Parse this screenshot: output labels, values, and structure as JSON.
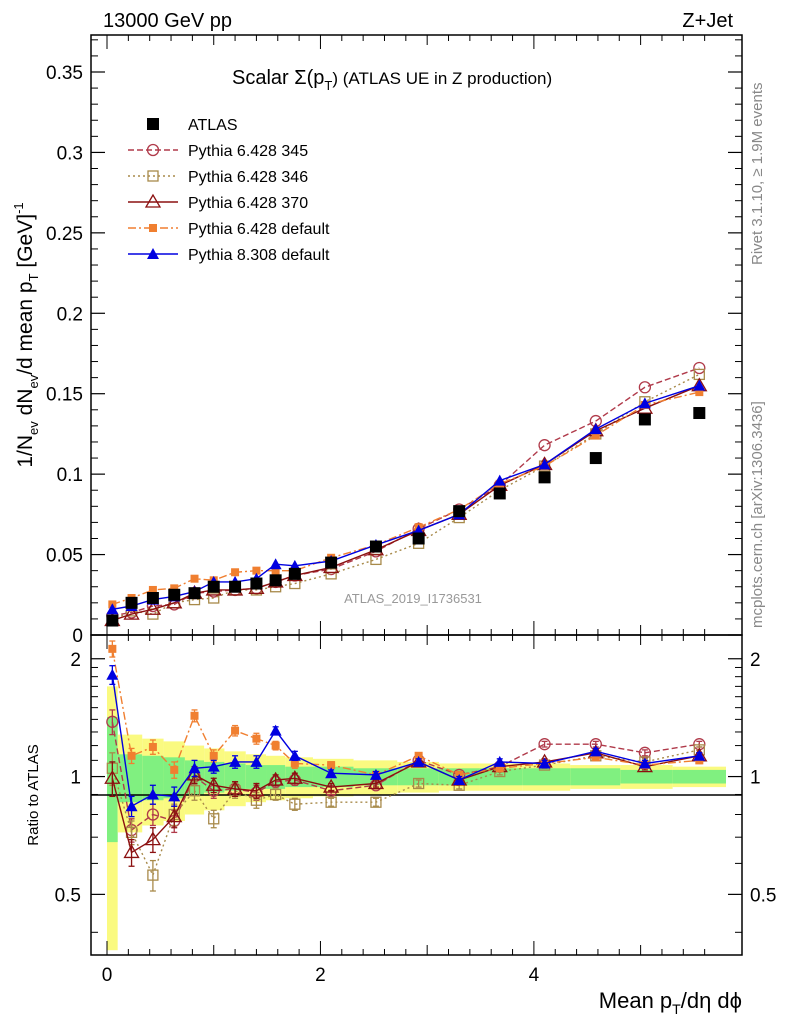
{
  "header": {
    "left": "13000 GeV pp",
    "right": "Z+Jet"
  },
  "side_labels": {
    "rivet": "Rivet 3.1.10, ≥ 1.9M events",
    "mcplots": "mcplots.cern.ch [arXiv:1306.3436]"
  },
  "watermark": "ATLAS_2019_I1736531",
  "colors": {
    "atlas": "#000000",
    "p345": "#b03a4a",
    "p346": "#a88a4a",
    "p370": "#8b1010",
    "p6def": "#f07f30",
    "p8def": "#0000e0",
    "band_inner": "#80f080",
    "band_outer": "#fafa80"
  },
  "chart_data": [
    {
      "panel": "main",
      "type": "scatter",
      "title_prefix": "Scalar Σ(p",
      "title_sub": "T",
      "title_suffix": ") (ATLAS UE in Z production)",
      "ylabel": "1/N_ev dN_ev/d mean p_T [GeV]^-1",
      "ylim": [
        0,
        0.373
      ],
      "xlim": [
        -0.15,
        5.95
      ],
      "yticks": [
        0,
        0.05,
        0.1,
        0.15,
        0.2,
        0.25,
        0.3,
        0.35
      ],
      "ytick_labels": [
        "0",
        "0.05",
        "0.1",
        "0.15",
        "0.2",
        "0.25",
        "0.3",
        "0.35"
      ],
      "x": [
        0.05,
        0.23,
        0.43,
        0.63,
        0.82,
        1.0,
        1.2,
        1.4,
        1.58,
        1.76,
        2.1,
        2.52,
        2.92,
        3.3,
        3.68,
        4.1,
        4.58,
        5.04,
        5.55
      ],
      "series": [
        {
          "name": "ATLAS",
          "key": "atlas",
          "marker": "square-filled",
          "line": "none",
          "values": [
            0.009,
            0.02,
            0.023,
            0.025,
            0.026,
            0.03,
            0.03,
            0.032,
            0.034,
            0.038,
            0.045,
            0.055,
            0.06,
            0.077,
            0.088,
            0.098,
            0.11,
            0.134,
            0.138
          ]
        },
        {
          "name": "Pythia 6.428 345",
          "key": "p345",
          "marker": "circle-open",
          "line": "dashed",
          "values": [
            0.012,
            0.014,
            0.018,
            0.019,
            0.026,
            0.027,
            0.028,
            0.029,
            0.033,
            0.037,
            0.041,
            0.052,
            0.066,
            0.078,
            0.093,
            0.118,
            0.133,
            0.154,
            0.166
          ]
        },
        {
          "name": "Pythia 6.428 346",
          "key": "p346",
          "marker": "square-open",
          "line": "dotted",
          "values": [
            0.009,
            0.015,
            0.013,
            0.02,
            0.022,
            0.023,
            0.028,
            0.028,
            0.03,
            0.032,
            0.038,
            0.047,
            0.057,
            0.073,
            0.09,
            0.105,
            0.125,
            0.145,
            0.162
          ]
        },
        {
          "name": "Pythia 6.428 370",
          "key": "p370",
          "marker": "triangle-open",
          "line": "solid",
          "values": [
            0.009,
            0.013,
            0.016,
            0.02,
            0.026,
            0.028,
            0.028,
            0.029,
            0.033,
            0.037,
            0.042,
            0.053,
            0.065,
            0.075,
            0.093,
            0.106,
            0.127,
            0.141,
            0.155
          ]
        },
        {
          "name": "Pythia 6.428 default",
          "key": "p6def",
          "marker": "square-filled-small",
          "line": "dashdot",
          "values": [
            0.019,
            0.023,
            0.028,
            0.029,
            0.035,
            0.034,
            0.039,
            0.04,
            0.04,
            0.04,
            0.048,
            0.056,
            0.067,
            0.078,
            0.094,
            0.105,
            0.124,
            0.143,
            0.151
          ]
        },
        {
          "name": "Pythia 8.308 default",
          "key": "p8def",
          "marker": "triangle-filled",
          "line": "solid",
          "values": [
            0.016,
            0.018,
            0.022,
            0.024,
            0.027,
            0.033,
            0.033,
            0.035,
            0.044,
            0.043,
            0.046,
            0.056,
            0.065,
            0.075,
            0.096,
            0.106,
            0.128,
            0.144,
            0.155
          ]
        }
      ]
    },
    {
      "panel": "ratio",
      "type": "scatter",
      "ylabel": "Ratio to ATLAS",
      "xlabel_main": "Mean p",
      "xlabel_sub": "T",
      "xlabel_rest": "/dη dϕ",
      "ylim": [
        0.35,
        2.3
      ],
      "xlim": [
        -0.15,
        5.95
      ],
      "yticks": [
        0.5,
        1,
        2
      ],
      "ytick_labels": [
        "0.5",
        "1",
        "2"
      ],
      "xticks": [
        0,
        2,
        4
      ],
      "xtick_labels": [
        "0",
        "2",
        "4"
      ],
      "x": [
        0.05,
        0.23,
        0.43,
        0.63,
        0.82,
        1.0,
        1.2,
        1.4,
        1.58,
        1.76,
        2.1,
        2.52,
        2.92,
        3.3,
        3.68,
        4.1,
        4.58,
        5.04,
        5.55
      ],
      "bins": [
        [
          0.0,
          0.1
        ],
        [
          0.1,
          0.33
        ],
        [
          0.33,
          0.53
        ],
        [
          0.53,
          0.73
        ],
        [
          0.73,
          0.91
        ],
        [
          0.91,
          1.1
        ],
        [
          1.1,
          1.3
        ],
        [
          1.3,
          1.49
        ],
        [
          1.49,
          1.67
        ],
        [
          1.67,
          1.93
        ],
        [
          1.93,
          2.31
        ],
        [
          2.31,
          2.72
        ],
        [
          2.72,
          3.11
        ],
        [
          3.11,
          3.49
        ],
        [
          3.49,
          3.89
        ],
        [
          3.89,
          4.34
        ],
        [
          4.34,
          4.81
        ],
        [
          4.81,
          5.3
        ],
        [
          5.3,
          5.8
        ]
      ],
      "band_inner": [
        [
          0.68,
          1.42
        ],
        [
          0.86,
          1.14
        ],
        [
          0.87,
          1.13
        ],
        [
          0.88,
          1.12
        ],
        [
          0.9,
          1.1
        ],
        [
          0.91,
          1.09
        ],
        [
          0.92,
          1.08
        ],
        [
          0.93,
          1.07
        ],
        [
          0.93,
          1.07
        ],
        [
          0.94,
          1.06
        ],
        [
          0.94,
          1.06
        ],
        [
          0.95,
          1.05
        ],
        [
          0.95,
          1.05
        ],
        [
          0.95,
          1.05
        ],
        [
          0.95,
          1.05
        ],
        [
          0.95,
          1.05
        ],
        [
          0.95,
          1.05
        ],
        [
          0.96,
          1.04
        ],
        [
          0.96,
          1.04
        ]
      ],
      "band_outer": [
        [
          0.36,
          1.7
        ],
        [
          0.72,
          1.28
        ],
        [
          0.75,
          1.25
        ],
        [
          0.77,
          1.23
        ],
        [
          0.8,
          1.2
        ],
        [
          0.82,
          1.18
        ],
        [
          0.84,
          1.16
        ],
        [
          0.86,
          1.14
        ],
        [
          0.87,
          1.13
        ],
        [
          0.88,
          1.12
        ],
        [
          0.89,
          1.11
        ],
        [
          0.9,
          1.1
        ],
        [
          0.91,
          1.09
        ],
        [
          0.92,
          1.08
        ],
        [
          0.92,
          1.08
        ],
        [
          0.92,
          1.08
        ],
        [
          0.93,
          1.07
        ],
        [
          0.93,
          1.07
        ],
        [
          0.94,
          1.06
        ]
      ],
      "series": [
        {
          "key": "p345",
          "marker": "circle-open",
          "line": "dashed",
          "values": [
            1.38,
            0.73,
            0.8,
            0.77,
            1.0,
            0.92,
            0.93,
            0.91,
            0.97,
            0.98,
            0.92,
            0.95,
            1.1,
            1.01,
            1.06,
            1.21,
            1.21,
            1.15,
            1.21
          ],
          "err": [
            0.1,
            0.05,
            0.05,
            0.05,
            0.05,
            0.04,
            0.04,
            0.04,
            0.03,
            0.03,
            0.02,
            0.02,
            0.02,
            0.02,
            0.02,
            0.02,
            0.02,
            0.02,
            0.02
          ]
        },
        {
          "key": "p346",
          "marker": "square-open",
          "line": "dotted",
          "values": [
            1.05,
            0.72,
            0.56,
            0.8,
            0.92,
            0.78,
            0.92,
            0.87,
            0.9,
            0.85,
            0.86,
            0.86,
            0.96,
            0.95,
            1.03,
            1.07,
            1.13,
            1.09,
            1.17
          ],
          "err": [
            0.1,
            0.05,
            0.05,
            0.05,
            0.05,
            0.04,
            0.04,
            0.04,
            0.03,
            0.03,
            0.02,
            0.02,
            0.02,
            0.02,
            0.02,
            0.02,
            0.02,
            0.02,
            0.02
          ]
        },
        {
          "key": "p370",
          "marker": "triangle-open",
          "line": "solid",
          "values": [
            0.99,
            0.64,
            0.69,
            0.79,
            1.01,
            0.95,
            0.93,
            0.92,
            0.98,
            0.99,
            0.94,
            0.96,
            1.09,
            0.98,
            1.06,
            1.09,
            1.15,
            1.06,
            1.13
          ],
          "err": [
            0.1,
            0.05,
            0.05,
            0.05,
            0.05,
            0.04,
            0.04,
            0.04,
            0.03,
            0.03,
            0.02,
            0.02,
            0.02,
            0.02,
            0.02,
            0.02,
            0.02,
            0.02,
            0.02
          ]
        },
        {
          "key": "p6def",
          "marker": "square-filled-small",
          "line": "dashdot",
          "values": [
            2.12,
            1.13,
            1.19,
            1.04,
            1.43,
            1.13,
            1.31,
            1.25,
            1.2,
            1.08,
            1.07,
            1.01,
            1.13,
            1.01,
            1.05,
            1.08,
            1.12,
            1.07,
            1.1
          ],
          "err": [
            0.1,
            0.05,
            0.05,
            0.05,
            0.05,
            0.04,
            0.04,
            0.04,
            0.03,
            0.03,
            0.02,
            0.02,
            0.02,
            0.02,
            0.02,
            0.02,
            0.02,
            0.02,
            0.02
          ]
        },
        {
          "key": "p8def",
          "marker": "triangle-filled",
          "line": "solid",
          "values": [
            1.82,
            0.84,
            0.9,
            0.89,
            1.05,
            1.06,
            1.09,
            1.09,
            1.31,
            1.13,
            1.02,
            1.01,
            1.09,
            0.98,
            1.09,
            1.08,
            1.16,
            1.08,
            1.13
          ],
          "err": [
            0.1,
            0.05,
            0.05,
            0.05,
            0.05,
            0.04,
            0.04,
            0.04,
            0.03,
            0.03,
            0.02,
            0.02,
            0.02,
            0.02,
            0.02,
            0.02,
            0.02,
            0.02,
            0.02
          ]
        }
      ]
    }
  ]
}
